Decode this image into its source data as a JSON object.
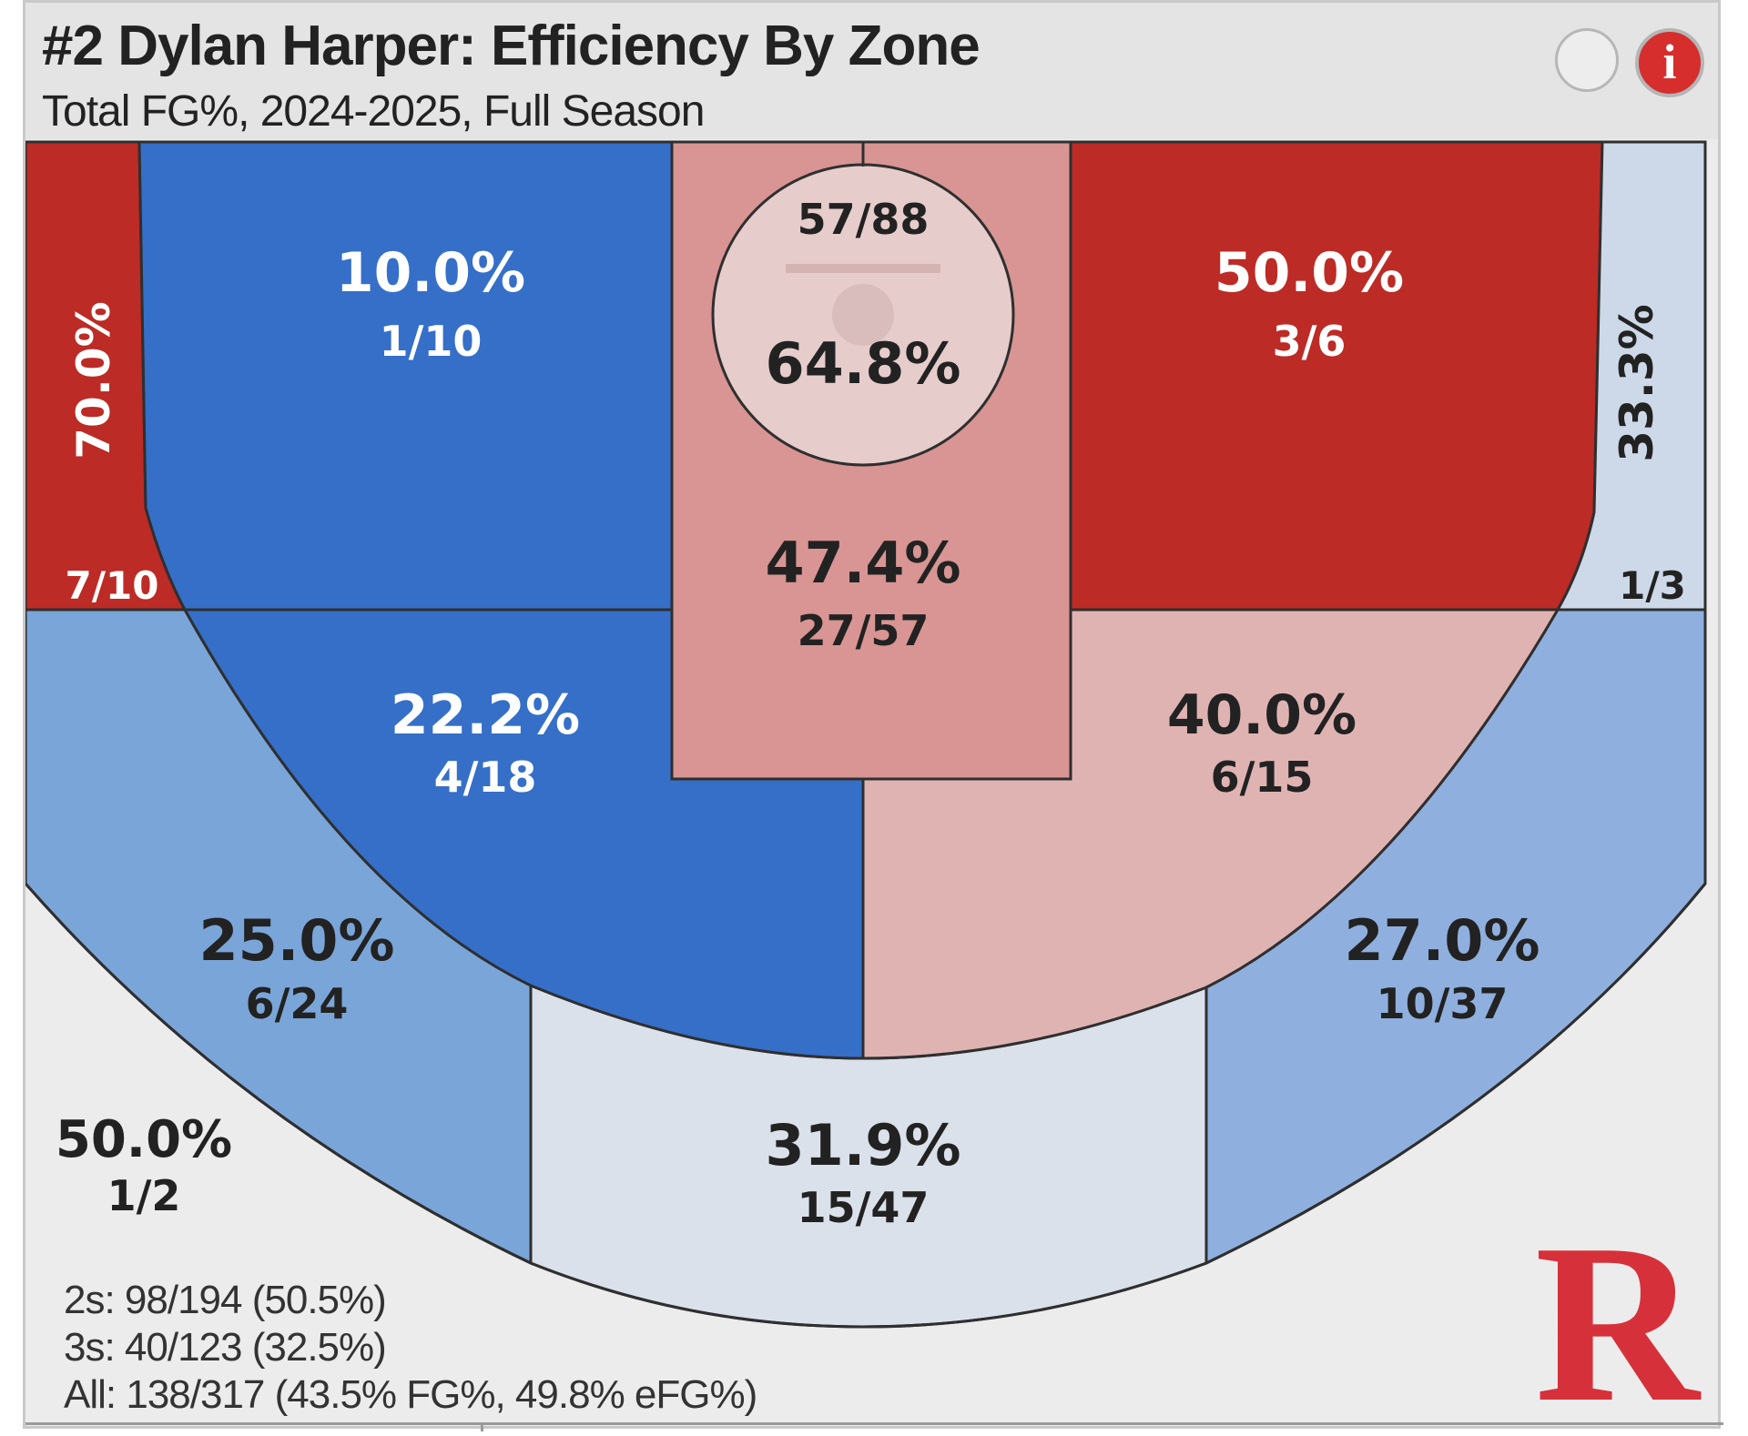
{
  "header": {
    "title": "#2 Dylan Harper: Efficiency By Zone",
    "subtitle": "Total FG%, 2024-2025, Full Season",
    "info_glyph": "i"
  },
  "icons": {
    "settings": "circle-toggle-icon",
    "info": "info-icon",
    "logo": "rutgers-r-logo"
  },
  "colors": {
    "dark_red": "#bc2b25",
    "medium_red": "#d89593",
    "light_red": "#e0b3b3",
    "pale_red": "#e7cccc",
    "dark_blue": "#356fc8",
    "medium_blue": "#7aa5d8",
    "light_blue": "#8fb0de",
    "pale_blue": "#cdd9e8",
    "paler_blue": "#dbe1ea",
    "neutral": "#ececec",
    "logo_red": "#d6313a"
  },
  "chart_data": {
    "type": "heatmap",
    "title": "#2 Dylan Harper: Efficiency By Zone",
    "subtitle": "Total FG%, 2024-2025, Full Season",
    "zones": [
      {
        "zone": "left-corner-three",
        "pct": "70.0%",
        "makes_attempts": "7/10",
        "makes": 7,
        "attempts": 10
      },
      {
        "zone": "left-baseline-midrange",
        "pct": "10.0%",
        "makes_attempts": "1/10",
        "makes": 1,
        "attempts": 10
      },
      {
        "zone": "restricted-area",
        "pct": "64.8%",
        "makes_attempts": "57/88",
        "makes": 57,
        "attempts": 88
      },
      {
        "zone": "paint-non-restricted",
        "pct": "47.4%",
        "makes_attempts": "27/57",
        "makes": 27,
        "attempts": 57
      },
      {
        "zone": "right-baseline-midrange",
        "pct": "50.0%",
        "makes_attempts": "3/6",
        "makes": 3,
        "attempts": 6
      },
      {
        "zone": "right-corner-three",
        "pct": "33.3%",
        "makes_attempts": "1/3",
        "makes": 1,
        "attempts": 3
      },
      {
        "zone": "left-elbow-midrange",
        "pct": "22.2%",
        "makes_attempts": "4/18",
        "makes": 4,
        "attempts": 18
      },
      {
        "zone": "right-elbow-midrange",
        "pct": "40.0%",
        "makes_attempts": "6/15",
        "makes": 6,
        "attempts": 15
      },
      {
        "zone": "left-wing-three",
        "pct": "25.0%",
        "makes_attempts": "6/24",
        "makes": 6,
        "attempts": 24
      },
      {
        "zone": "top-of-key-three",
        "pct": "31.9%",
        "makes_attempts": "15/47",
        "makes": 15,
        "attempts": 47
      },
      {
        "zone": "right-wing-three",
        "pct": "27.0%",
        "makes_attempts": "10/37",
        "makes": 10,
        "attempts": 37
      },
      {
        "zone": "deep-three",
        "pct": "50.0%",
        "makes_attempts": "1/2",
        "makes": 1,
        "attempts": 2
      }
    ],
    "totals": {
      "twos": "2s: 98/194 (50.5%)",
      "threes": "3s: 40/123 (32.5%)",
      "all": "All: 138/317 (43.5% FG%, 49.8% eFG%)"
    }
  },
  "logo": {
    "letter": "R"
  }
}
